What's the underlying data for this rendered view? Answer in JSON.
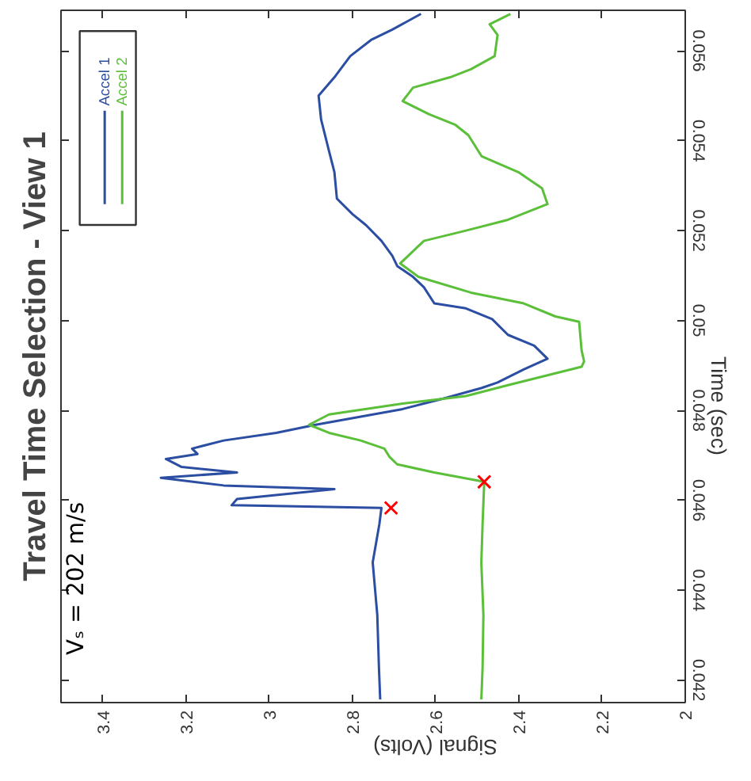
{
  "chart_data": {
    "type": "line",
    "title": "Travel Time Selection - View 1",
    "xlabel": "Signal (Volts)",
    "ylabel": "Time (sec)",
    "xlim": [
      3.5,
      2
    ],
    "ylim": [
      0.0415,
      0.0569
    ],
    "xticks": [
      3.4,
      3.2,
      3,
      2.8,
      2.6,
      2.4,
      2.2,
      2
    ],
    "yticks": [
      0.042,
      0.044,
      0.046,
      0.048,
      0.05,
      0.052,
      0.054,
      0.056
    ],
    "grid": false,
    "legend": "top left",
    "marker": "none",
    "line_style": "solid",
    "annotations": [
      "Vₛ = 202 m/s"
    ],
    "series": [
      {
        "name": "Accel 1",
        "color": "#2b4ea2",
        "values": [
          0.04157,
          0.04227,
          0.04345,
          0.04462,
          0.04547,
          0.04583,
          0.04589,
          0.04603,
          0.04625,
          0.04633,
          0.0465,
          0.04662,
          0.04674,
          0.04692,
          0.04703,
          0.04715,
          0.04733,
          0.0475,
          0.04768,
          0.04803,
          0.04827,
          0.0485,
          0.04862,
          0.04891,
          0.04915,
          0.04944,
          0.04968,
          0.05003,
          0.05027,
          0.05038,
          0.05074,
          0.05097,
          0.05121,
          0.05144,
          0.05177,
          0.05212,
          0.05236,
          0.05271,
          0.0533,
          0.05377,
          0.05447,
          0.055,
          0.05541,
          0.05588,
          0.05624,
          0.05647,
          0.05682
        ],
        "x": [
          2.733,
          2.736,
          2.74,
          2.751,
          2.735,
          2.73,
          3.09,
          3.077,
          2.843,
          3.109,
          3.26,
          3.077,
          3.21,
          3.248,
          3.172,
          3.185,
          3.109,
          2.983,
          2.888,
          2.679,
          2.578,
          2.489,
          2.451,
          2.388,
          2.331,
          2.363,
          2.426,
          2.464,
          2.527,
          2.603,
          2.628,
          2.654,
          2.692,
          2.704,
          2.73,
          2.767,
          2.799,
          2.837,
          2.843,
          2.856,
          2.875,
          2.881,
          2.843,
          2.805,
          2.755,
          2.704,
          2.635
        ]
      },
      {
        "name": "Accel 2",
        "color": "#5cbf3a",
        "values": [
          0.04157,
          0.04227,
          0.04345,
          0.04462,
          0.04547,
          0.04641,
          0.04662,
          0.0468,
          0.04697,
          0.04715,
          0.04733,
          0.0475,
          0.04768,
          0.04791,
          0.04815,
          0.04832,
          0.04856,
          0.04897,
          0.04909,
          0.04933,
          0.04997,
          0.05009,
          0.05038,
          0.05062,
          0.05097,
          0.05127,
          0.05177,
          0.052,
          0.05224,
          0.05259,
          0.05294,
          0.0533,
          0.05365,
          0.05412,
          0.05435,
          0.05459,
          0.05488,
          0.05518,
          0.05541,
          0.05559,
          0.05588,
          0.05635,
          0.05659,
          0.05682
        ],
        "x": [
          2.49,
          2.487,
          2.485,
          2.49,
          2.487,
          2.483,
          2.603,
          2.692,
          2.711,
          2.723,
          2.78,
          2.856,
          2.904,
          2.856,
          2.679,
          2.527,
          2.426,
          2.249,
          2.243,
          2.249,
          2.255,
          2.312,
          2.388,
          2.515,
          2.641,
          2.685,
          2.628,
          2.527,
          2.426,
          2.331,
          2.344,
          2.401,
          2.489,
          2.521,
          2.552,
          2.616,
          2.679,
          2.654,
          2.565,
          2.515,
          2.458,
          2.451,
          2.47,
          2.42
        ]
      },
      {
        "type": "scatter",
        "marker": "cross",
        "color": "#ff0000",
        "x": [
          2.707,
          2.483
        ],
        "values": [
          0.04583,
          0.04641
        ]
      }
    ]
  }
}
